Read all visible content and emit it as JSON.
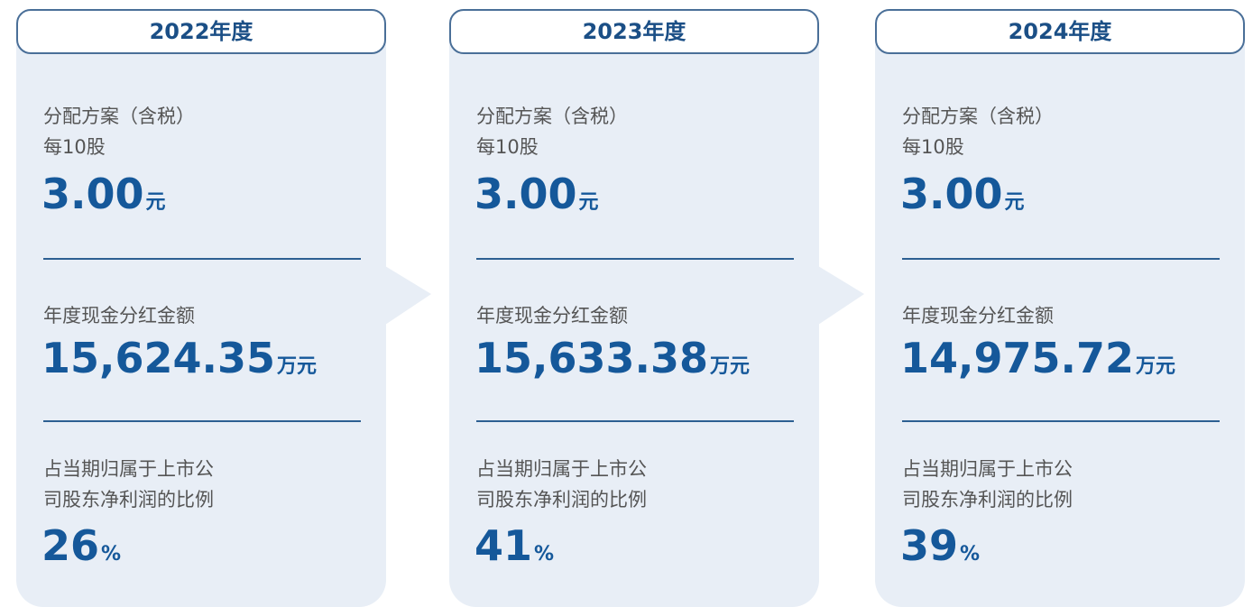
{
  "cards": [
    {
      "title": "2022年度",
      "sections": [
        {
          "label_lines": [
            "分配方案（含税）",
            "每10股"
          ],
          "value": "3.00",
          "unit": "元"
        },
        {
          "label_lines": [
            "年度现金分红金额"
          ],
          "value": "15,624.35",
          "unit": "万元"
        },
        {
          "label_lines": [
            "占当期归属于上市公",
            "司股东净利润的比例"
          ],
          "value": "26",
          "unit": "%"
        }
      ]
    },
    {
      "title": "2023年度",
      "sections": [
        {
          "label_lines": [
            "分配方案（含税）",
            "每10股"
          ],
          "value": "3.00",
          "unit": "元"
        },
        {
          "label_lines": [
            "年度现金分红金额"
          ],
          "value": "15,633.38",
          "unit": "万元"
        },
        {
          "label_lines": [
            "占当期归属于上市公",
            "司股东净利润的比例"
          ],
          "value": "41",
          "unit": "%"
        }
      ]
    },
    {
      "title": "2024年度",
      "sections": [
        {
          "label_lines": [
            "分配方案（含税）",
            "每10股"
          ],
          "value": "3.00",
          "unit": "元"
        },
        {
          "label_lines": [
            "年度现金分红金额"
          ],
          "value": "14,975.72",
          "unit": "万元"
        },
        {
          "label_lines": [
            "占当期归属于上市公",
            "司股东净利润的比例"
          ],
          "value": "39",
          "unit": "%"
        }
      ]
    }
  ]
}
